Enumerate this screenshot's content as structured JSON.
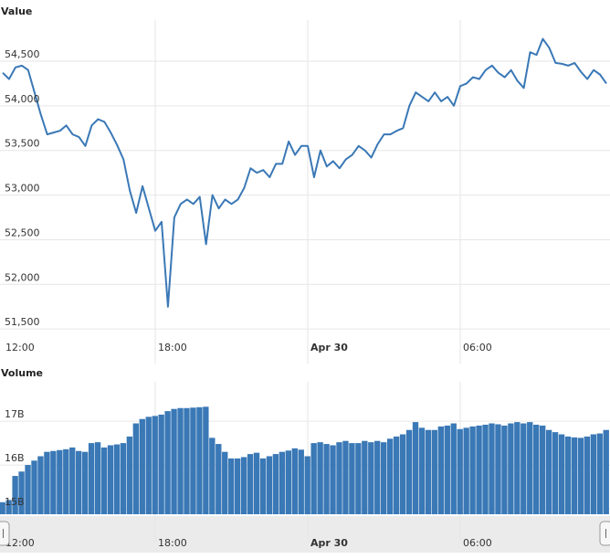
{
  "chart_data": [
    {
      "type": "line",
      "title": "Value",
      "categories": [
        "12:00",
        null,
        null,
        null,
        null,
        null,
        null,
        null,
        null,
        null,
        null,
        null,
        null,
        null,
        null,
        null,
        null,
        null,
        null,
        null,
        null,
        null,
        null,
        null,
        "18:00",
        null,
        null,
        null,
        null,
        null,
        null,
        null,
        null,
        null,
        null,
        null,
        null,
        null,
        null,
        null,
        null,
        null,
        null,
        null,
        null,
        null,
        null,
        null,
        "Apr 30",
        null,
        null,
        null,
        null,
        null,
        null,
        null,
        null,
        null,
        null,
        null,
        null,
        null,
        null,
        null,
        null,
        null,
        null,
        null,
        null,
        null,
        null,
        null,
        "06:00",
        null,
        null,
        null,
        null,
        null,
        null,
        null,
        null,
        null,
        null,
        null,
        null,
        null,
        null,
        null,
        null,
        null,
        null,
        null,
        null,
        null,
        null,
        null
      ],
      "values": [
        54370,
        54300,
        54430,
        54450,
        54400,
        54150,
        53900,
        53680,
        53700,
        53720,
        53780,
        53680,
        53650,
        53550,
        53780,
        53850,
        53820,
        53700,
        53560,
        53400,
        53050,
        52800,
        53100,
        52850,
        52600,
        52700,
        51750,
        52750,
        52900,
        52950,
        52900,
        52980,
        52450,
        53000,
        52850,
        52950,
        52900,
        52950,
        53080,
        53300,
        53250,
        53280,
        53200,
        53350,
        53350,
        53600,
        53450,
        53550,
        53550,
        53200,
        53500,
        53320,
        53380,
        53300,
        53400,
        53450,
        53550,
        53500,
        53420,
        53570,
        53680,
        53680,
        53720,
        53750,
        54000,
        54150,
        54100,
        54050,
        54150,
        54050,
        54100,
        54000,
        54220,
        54250,
        54320,
        54300,
        54400,
        54450,
        54370,
        54320,
        54400,
        54280,
        54200,
        54600,
        54570,
        54750,
        54650,
        54480,
        54470,
        54450,
        54480,
        54380,
        54300,
        54400,
        54350,
        54250
      ],
      "color": "#3a78b6",
      "ylim": [
        51420,
        54960
      ],
      "yticks": [
        {
          "value": 51500,
          "label": "51,500"
        },
        {
          "value": 52000,
          "label": "52,000"
        },
        {
          "value": 52500,
          "label": "52,500"
        },
        {
          "value": 53000,
          "label": "53,000"
        },
        {
          "value": 53500,
          "label": "53,500"
        },
        {
          "value": 54000,
          "label": "54,000"
        },
        {
          "value": 54500,
          "label": "54,500"
        }
      ],
      "grid": true
    },
    {
      "type": "bar",
      "title": "Volume",
      "categories": [
        "12:00",
        null,
        null,
        null,
        null,
        null,
        null,
        null,
        null,
        null,
        null,
        null,
        null,
        null,
        null,
        null,
        null,
        null,
        null,
        null,
        null,
        null,
        null,
        null,
        "18:00",
        null,
        null,
        null,
        null,
        null,
        null,
        null,
        null,
        null,
        null,
        null,
        null,
        null,
        null,
        null,
        null,
        null,
        null,
        null,
        null,
        null,
        null,
        null,
        "Apr 30",
        null,
        null,
        null,
        null,
        null,
        null,
        null,
        null,
        null,
        null,
        null,
        null,
        null,
        null,
        null,
        null,
        null,
        null,
        null,
        null,
        null,
        null,
        null,
        "06:00",
        null,
        null,
        null,
        null,
        null,
        null,
        null,
        null,
        null,
        null,
        null,
        null,
        null,
        null,
        null,
        null,
        null,
        null,
        null,
        null,
        null,
        null,
        null
      ],
      "values": [
        15.15,
        15.2,
        15.75,
        15.85,
        16.0,
        16.1,
        16.2,
        16.3,
        16.32,
        16.34,
        16.36,
        16.4,
        16.32,
        16.3,
        16.5,
        16.52,
        16.4,
        16.45,
        16.47,
        16.5,
        16.65,
        16.95,
        17.05,
        17.1,
        17.12,
        17.15,
        17.23,
        17.28,
        17.3,
        17.3,
        17.31,
        17.32,
        17.33,
        16.62,
        16.48,
        16.3,
        16.15,
        16.15,
        16.18,
        16.25,
        16.28,
        16.15,
        16.2,
        16.25,
        16.3,
        16.33,
        16.38,
        16.35,
        16.2,
        16.5,
        16.52,
        16.48,
        16.45,
        16.52,
        16.55,
        16.5,
        16.5,
        16.55,
        16.52,
        16.55,
        16.52,
        16.6,
        16.65,
        16.7,
        16.8,
        16.98,
        16.85,
        16.8,
        16.8,
        16.88,
        16.9,
        16.95,
        16.82,
        16.85,
        16.88,
        16.9,
        16.92,
        16.95,
        16.93,
        16.9,
        16.95,
        16.98,
        16.95,
        16.98,
        16.92,
        16.9,
        16.8,
        16.75,
        16.7,
        16.65,
        16.63,
        16.62,
        16.65,
        16.7,
        16.72,
        16.8
      ],
      "color": "#3a78b6",
      "ylim": [
        14.875,
        17.9
      ],
      "yticks": [
        {
          "value": 15,
          "label": "15B"
        },
        {
          "value": 16,
          "label": "16B"
        },
        {
          "value": 17,
          "label": "17B"
        }
      ],
      "grid": true
    }
  ]
}
